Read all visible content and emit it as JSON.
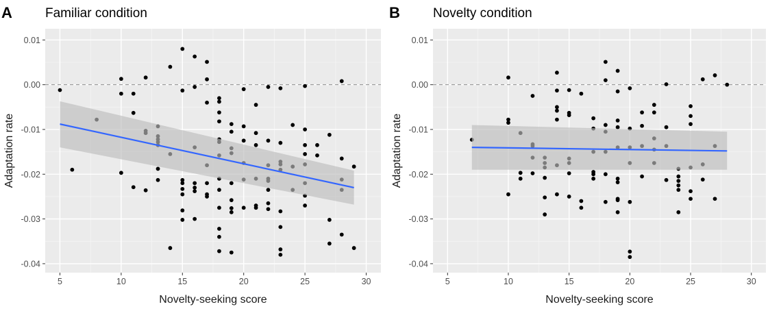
{
  "chart_data": [
    {
      "type": "scatter",
      "panel_label": "A",
      "title": "Familiar condition",
      "xlabel": "Novelty-seeking score",
      "ylabel": "Adaptation rate",
      "xlim": [
        3.8,
        31.2
      ],
      "ylim": [
        -0.042,
        0.0125
      ],
      "xticks": [
        5,
        10,
        15,
        20,
        25,
        30
      ],
      "yticks": [
        0.01,
        0.0,
        -0.01,
        -0.02,
        -0.03,
        -0.04
      ],
      "ytick_labels": [
        "0.01",
        "0.00",
        "-0.01",
        "-0.02",
        "-0.03",
        "-0.04"
      ],
      "grid": true,
      "reference_line": {
        "y": 0.0,
        "style": "dashed"
      },
      "fit_line": {
        "x": [
          5,
          29
        ],
        "y": [
          -0.0088,
          -0.023
        ],
        "color": "#3366ff"
      },
      "ci_band": {
        "x": [
          5,
          29
        ],
        "lower": [
          -0.014,
          -0.0268
        ],
        "upper": [
          -0.0037,
          -0.0192
        ],
        "color": "#bdbdbd"
      },
      "points": [
        [
          5,
          -0.0012
        ],
        [
          6,
          -0.019
        ],
        [
          8,
          -0.0078
        ],
        [
          10,
          0.0013
        ],
        [
          10,
          -0.002
        ],
        [
          10,
          -0.0197
        ],
        [
          11,
          -0.002
        ],
        [
          11,
          -0.0063
        ],
        [
          11,
          -0.0229
        ],
        [
          12,
          0.0016
        ],
        [
          12,
          -0.0103
        ],
        [
          12,
          -0.0108
        ],
        [
          12,
          -0.0236
        ],
        [
          13,
          -0.0093
        ],
        [
          13,
          -0.0115
        ],
        [
          13,
          -0.0122
        ],
        [
          13,
          -0.0128
        ],
        [
          13,
          -0.0135
        ],
        [
          13,
          -0.0188
        ],
        [
          13,
          -0.0213
        ],
        [
          14,
          0.004
        ],
        [
          14,
          -0.0155
        ],
        [
          14,
          -0.0365
        ],
        [
          15,
          0.008
        ],
        [
          15,
          -0.0013
        ],
        [
          15,
          -0.0213
        ],
        [
          15,
          -0.022
        ],
        [
          15,
          -0.0233
        ],
        [
          15,
          -0.0245
        ],
        [
          15,
          -0.0281
        ],
        [
          15,
          -0.0302
        ],
        [
          16,
          0.0063
        ],
        [
          16,
          -0.0005
        ],
        [
          16,
          -0.014
        ],
        [
          16,
          -0.022
        ],
        [
          16,
          -0.023
        ],
        [
          16,
          -0.0238
        ],
        [
          16,
          -0.03
        ],
        [
          17,
          0.0051
        ],
        [
          17,
          0.0012
        ],
        [
          17,
          -0.004
        ],
        [
          17,
          -0.018
        ],
        [
          17,
          -0.022
        ],
        [
          17,
          -0.0245
        ],
        [
          17,
          -0.025
        ],
        [
          18,
          -0.003
        ],
        [
          18,
          -0.0038
        ],
        [
          18,
          -0.0062
        ],
        [
          18,
          -0.0082
        ],
        [
          18,
          -0.0122
        ],
        [
          18,
          -0.0128
        ],
        [
          18,
          -0.0158
        ],
        [
          18,
          -0.021
        ],
        [
          18,
          -0.0235
        ],
        [
          18,
          -0.0275
        ],
        [
          18,
          -0.0322
        ],
        [
          18,
          -0.034
        ],
        [
          18,
          -0.0372
        ],
        [
          19,
          -0.0088
        ],
        [
          19,
          -0.0105
        ],
        [
          19,
          -0.0142
        ],
        [
          19,
          -0.0153
        ],
        [
          19,
          -0.022
        ],
        [
          19,
          -0.0258
        ],
        [
          19,
          -0.0276
        ],
        [
          19,
          -0.0285
        ],
        [
          19,
          -0.0375
        ],
        [
          20,
          -0.001
        ],
        [
          20,
          -0.0093
        ],
        [
          20,
          -0.0125
        ],
        [
          20,
          -0.0175
        ],
        [
          20,
          -0.0212
        ],
        [
          20,
          -0.0275
        ],
        [
          21,
          -0.0045
        ],
        [
          21,
          -0.0108
        ],
        [
          21,
          -0.0135
        ],
        [
          21,
          -0.021
        ],
        [
          21,
          -0.027
        ],
        [
          21,
          -0.0275
        ],
        [
          22,
          -0.0125
        ],
        [
          22,
          -0.018
        ],
        [
          22,
          -0.021
        ],
        [
          22,
          -0.0215
        ],
        [
          22,
          -0.0235
        ],
        [
          22,
          -0.0265
        ],
        [
          22,
          -0.0278
        ],
        [
          22,
          -0.0005
        ],
        [
          23,
          -0.0008
        ],
        [
          23,
          -0.013
        ],
        [
          23,
          -0.0172
        ],
        [
          23,
          -0.0178
        ],
        [
          23,
          -0.019
        ],
        [
          23,
          -0.0283
        ],
        [
          23,
          -0.0318
        ],
        [
          23,
          -0.0368
        ],
        [
          23,
          -0.038
        ],
        [
          24,
          -0.009
        ],
        [
          24,
          -0.0183
        ],
        [
          24,
          -0.0235
        ],
        [
          25,
          -0.0003
        ],
        [
          25,
          -0.01
        ],
        [
          25,
          -0.0135
        ],
        [
          25,
          -0.0155
        ],
        [
          25,
          -0.0178
        ],
        [
          25,
          -0.022
        ],
        [
          25,
          -0.0248
        ],
        [
          25,
          -0.027
        ],
        [
          26,
          -0.0135
        ],
        [
          26,
          -0.0158
        ],
        [
          27,
          -0.0112
        ],
        [
          27,
          -0.0302
        ],
        [
          27,
          -0.0355
        ],
        [
          28,
          0.0008
        ],
        [
          28,
          -0.0165
        ],
        [
          28,
          -0.0212
        ],
        [
          28,
          -0.0235
        ],
        [
          28,
          -0.0335
        ],
        [
          29,
          -0.0183
        ],
        [
          29,
          -0.0365
        ]
      ]
    },
    {
      "type": "scatter",
      "panel_label": "B",
      "title": "Novelty condition",
      "xlabel": "Novelty-seeking score",
      "ylabel": "Adaptation rate",
      "xlim": [
        3.8,
        31.2
      ],
      "ylim": [
        -0.042,
        0.0125
      ],
      "xticks": [
        5,
        10,
        15,
        20,
        25,
        30
      ],
      "yticks": [
        0.01,
        0.0,
        -0.01,
        -0.02,
        -0.03,
        -0.04
      ],
      "ytick_labels": [
        "0.01",
        "0.00",
        "-0.01",
        "-0.02",
        "-0.03",
        "-0.04"
      ],
      "grid": true,
      "reference_line": {
        "y": 0.0,
        "style": "dashed"
      },
      "fit_line": {
        "x": [
          7,
          28
        ],
        "y": [
          -0.014,
          -0.0148
        ],
        "color": "#3366ff"
      },
      "ci_band": {
        "x": [
          7,
          28
        ],
        "lower": [
          -0.019,
          -0.019
        ],
        "upper": [
          -0.009,
          -0.0105
        ],
        "color": "#bdbdbd"
      },
      "points": [
        [
          7,
          -0.0123
        ],
        [
          10,
          0.0016
        ],
        [
          10,
          -0.0078
        ],
        [
          10,
          -0.0085
        ],
        [
          10,
          -0.0245
        ],
        [
          11,
          -0.0108
        ],
        [
          11,
          -0.0197
        ],
        [
          11,
          -0.021
        ],
        [
          12,
          -0.0025
        ],
        [
          12,
          -0.0133
        ],
        [
          12,
          -0.0137
        ],
        [
          12,
          -0.0163
        ],
        [
          12,
          -0.0198
        ],
        [
          13,
          -0.0163
        ],
        [
          13,
          -0.0175
        ],
        [
          13,
          -0.0185
        ],
        [
          13,
          -0.0208
        ],
        [
          13,
          -0.0252
        ],
        [
          13,
          -0.029
        ],
        [
          14,
          0.0027
        ],
        [
          14,
          -0.0013
        ],
        [
          14,
          -0.005
        ],
        [
          14,
          -0.0058
        ],
        [
          14,
          -0.0078
        ],
        [
          14,
          -0.018
        ],
        [
          14,
          -0.0245
        ],
        [
          15,
          -0.0012
        ],
        [
          15,
          -0.0063
        ],
        [
          15,
          -0.0068
        ],
        [
          15,
          -0.0165
        ],
        [
          15,
          -0.0175
        ],
        [
          15,
          -0.0198
        ],
        [
          15,
          -0.025
        ],
        [
          16,
          -0.002
        ],
        [
          16,
          -0.026
        ],
        [
          16,
          -0.0275
        ],
        [
          17,
          -0.0075
        ],
        [
          17,
          -0.0098
        ],
        [
          17,
          -0.015
        ],
        [
          17,
          -0.0195
        ],
        [
          17,
          -0.02
        ],
        [
          17,
          -0.021
        ],
        [
          18,
          0.0051
        ],
        [
          18,
          0.001
        ],
        [
          18,
          -0.009
        ],
        [
          18,
          -0.0105
        ],
        [
          18,
          -0.015
        ],
        [
          18,
          -0.02
        ],
        [
          18,
          -0.0262
        ],
        [
          19,
          0.0031
        ],
        [
          19,
          -0.0015
        ],
        [
          19,
          -0.008
        ],
        [
          19,
          -0.0095
        ],
        [
          19,
          -0.014
        ],
        [
          19,
          -0.021
        ],
        [
          19,
          -0.0218
        ],
        [
          19,
          -0.0255
        ],
        [
          19,
          -0.0258
        ],
        [
          19,
          -0.0285
        ],
        [
          20,
          -0.0008
        ],
        [
          20,
          -0.0098
        ],
        [
          20,
          -0.014
        ],
        [
          20,
          -0.0175
        ],
        [
          20,
          -0.0262
        ],
        [
          20,
          -0.0373
        ],
        [
          20,
          -0.0385
        ],
        [
          21,
          -0.0062
        ],
        [
          21,
          -0.0092
        ],
        [
          21,
          -0.0137
        ],
        [
          21,
          -0.0205
        ],
        [
          22,
          -0.0045
        ],
        [
          22,
          -0.0062
        ],
        [
          22,
          -0.012
        ],
        [
          22,
          -0.0145
        ],
        [
          22,
          -0.0175
        ],
        [
          23,
          0.0001
        ],
        [
          23,
          -0.0095
        ],
        [
          23,
          -0.0137
        ],
        [
          23,
          -0.0213
        ],
        [
          24,
          -0.0188
        ],
        [
          24,
          -0.0205
        ],
        [
          24,
          -0.0215
        ],
        [
          24,
          -0.0225
        ],
        [
          24,
          -0.0235
        ],
        [
          24,
          -0.0285
        ],
        [
          25,
          -0.0048
        ],
        [
          25,
          -0.007
        ],
        [
          25,
          -0.0088
        ],
        [
          25,
          -0.0185
        ],
        [
          25,
          -0.0238
        ],
        [
          25,
          -0.0255
        ],
        [
          26,
          0.0012
        ],
        [
          26,
          -0.0178
        ],
        [
          26,
          -0.0212
        ],
        [
          27,
          0.0021
        ],
        [
          27,
          -0.0137
        ],
        [
          27,
          -0.0255
        ],
        [
          28,
          0.0
        ]
      ]
    }
  ]
}
